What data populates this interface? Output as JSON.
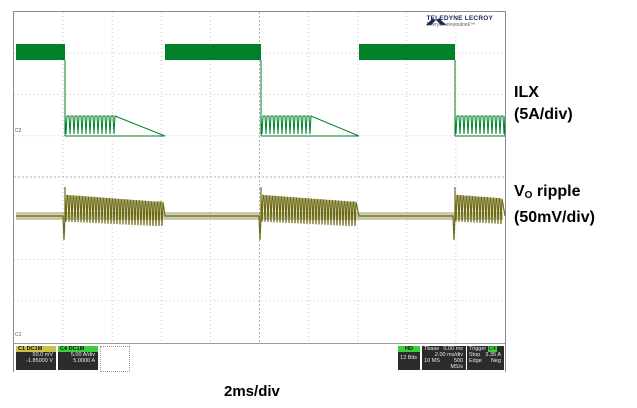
{
  "brand": {
    "name": "TELEDYNE LECROY",
    "tagline": "Everywhereyoulook™"
  },
  "labels": {
    "ilx_title": "ILX",
    "ilx_scale": "(5A/div)",
    "vo_prefix": "V",
    "vo_subscript": "O",
    "vo_suffix": " ripple",
    "vo_scale": "(50mV/div)",
    "timebase": "2ms/div"
  },
  "channel_tags": {
    "c2_marker": "C2",
    "c1_marker": "C1"
  },
  "info": {
    "c1": {
      "tag": "C1",
      "mode": "DC1M",
      "scale": "50.0 mV",
      "offset": "-1.85000 V"
    },
    "c4": {
      "tag": "C4",
      "mode": "DC1M",
      "scale": "5.00 A/div",
      "offset": "5.0000 A"
    },
    "hd": {
      "tag": "HD",
      "bits": "12 Bits"
    },
    "timebase": {
      "label": "Tbase",
      "delay": "0.00 ms",
      "per_div": "2.00 ms/div",
      "samples": "10 MS",
      "rate": "500 MS/s"
    },
    "trigger": {
      "label": "Trigger",
      "channel": "C4",
      "mode": "DC",
      "type": "Stop",
      "level": "3.35 A",
      "source": "Edge",
      "slope": "Neg"
    }
  },
  "colors": {
    "current_trace": "#00802a",
    "voltage_trace": "#6e6a14",
    "grid": "#c8c8c8"
  }
}
